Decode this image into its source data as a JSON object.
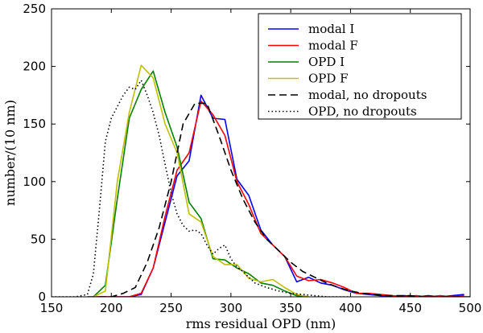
{
  "chart_data": {
    "type": "line",
    "title": "",
    "xlabel": "rms residual OPD (nm)",
    "ylabel": "number/(10 nm)",
    "xlim": [
      150,
      500
    ],
    "ylim": [
      0,
      250
    ],
    "xticks": [
      150,
      200,
      250,
      300,
      350,
      400,
      450,
      500
    ],
    "yticks": [
      0,
      50,
      100,
      150,
      200,
      250
    ],
    "grid": false,
    "legend_position": "top-right",
    "series": [
      {
        "name": "modal I",
        "color": "#0000ff",
        "style": "solid",
        "x": [
          185,
          195,
          205,
          215,
          225,
          235,
          245,
          255,
          265,
          275,
          285,
          295,
          305,
          315,
          325,
          335,
          345,
          355,
          365,
          375,
          385,
          395,
          405,
          415,
          425,
          435,
          445,
          455,
          465,
          475,
          485,
          495
        ],
        "y": [
          0,
          0,
          0,
          0,
          2,
          25,
          65,
          105,
          118,
          175,
          155,
          154,
          102,
          88,
          58,
          45,
          35,
          13,
          17,
          12,
          10,
          6,
          3,
          2,
          1,
          0,
          1,
          0,
          1,
          0,
          1,
          2
        ]
      },
      {
        "name": "modal F",
        "color": "#ff0000",
        "style": "solid",
        "x": [
          185,
          195,
          205,
          215,
          225,
          235,
          245,
          255,
          265,
          275,
          285,
          295,
          305,
          315,
          325,
          335,
          345,
          355,
          365,
          375,
          385,
          395,
          405,
          415,
          425,
          435,
          445,
          455,
          465,
          475,
          485,
          495
        ],
        "y": [
          0,
          0,
          0,
          0,
          3,
          25,
          70,
          110,
          125,
          170,
          158,
          140,
          100,
          80,
          55,
          45,
          35,
          18,
          14,
          15,
          12,
          8,
          3,
          3,
          2,
          1,
          0,
          1,
          0,
          1,
          0,
          1
        ]
      },
      {
        "name": "OPD I",
        "color": "#008000",
        "style": "solid",
        "x": [
          185,
          195,
          205,
          215,
          225,
          235,
          245,
          255,
          265,
          275,
          285,
          295,
          305,
          315,
          325,
          335,
          345,
          355,
          365
        ],
        "y": [
          0,
          10,
          85,
          155,
          180,
          196,
          160,
          130,
          82,
          68,
          33,
          32,
          25,
          20,
          12,
          10,
          5,
          1,
          0
        ]
      },
      {
        "name": "OPD F",
        "color": "#bfbf00",
        "style": "solid",
        "x": [
          185,
          195,
          205,
          215,
          225,
          235,
          245,
          255,
          265,
          275,
          285,
          295,
          305,
          315,
          325,
          335,
          345,
          355,
          365
        ],
        "y": [
          0,
          5,
          100,
          160,
          201,
          190,
          150,
          125,
          72,
          65,
          35,
          28,
          28,
          16,
          13,
          15,
          8,
          2,
          0
        ]
      },
      {
        "name": "modal, no dropouts",
        "color": "#000000",
        "style": "dashed",
        "x": [
          180,
          190,
          200,
          210,
          220,
          230,
          240,
          250,
          260,
          270,
          280,
          290,
          300,
          310,
          320,
          330,
          340,
          350,
          360,
          370,
          380,
          390,
          400,
          410,
          420,
          430,
          440,
          450,
          460,
          470,
          480,
          490,
          500
        ],
        "y": [
          0,
          0,
          0,
          3,
          8,
          30,
          60,
          100,
          150,
          168,
          168,
          140,
          110,
          85,
          65,
          50,
          40,
          30,
          22,
          17,
          12,
          8,
          5,
          3,
          2,
          1,
          1,
          1,
          0,
          0,
          0,
          0,
          0
        ]
      },
      {
        "name": "OPD, no dropouts",
        "color": "#000000",
        "style": "dotted",
        "x": [
          150,
          170,
          180,
          185,
          190,
          195,
          200,
          205,
          210,
          215,
          220,
          225,
          230,
          235,
          240,
          245,
          250,
          255,
          260,
          265,
          270,
          275,
          280,
          285,
          290,
          295,
          300,
          305,
          310,
          315,
          320,
          330,
          340,
          350,
          360,
          370,
          380,
          390,
          400
        ],
        "y": [
          0,
          0,
          2,
          20,
          75,
          135,
          155,
          165,
          175,
          182,
          180,
          188,
          175,
          160,
          140,
          115,
          90,
          72,
          62,
          57,
          58,
          55,
          45,
          37,
          42,
          45,
          33,
          26,
          22,
          17,
          12,
          8,
          5,
          3,
          2,
          1,
          0,
          0,
          0
        ]
      }
    ]
  }
}
